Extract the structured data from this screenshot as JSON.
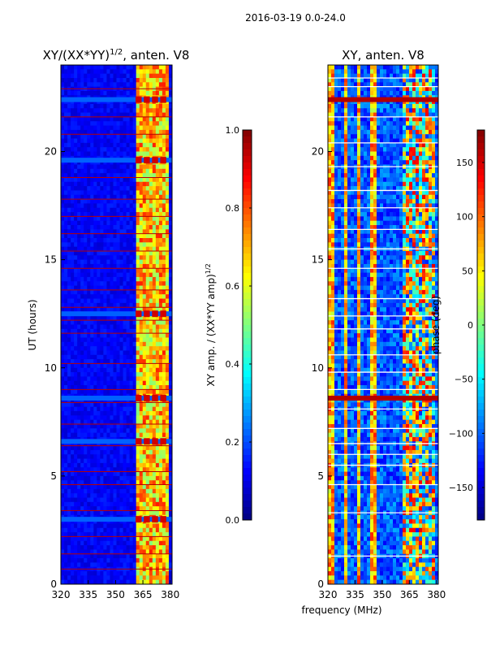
{
  "figure": {
    "suptitle": "2016-03-19 0.0-24.0",
    "shared_xlabel": "frequency (MHz)"
  },
  "colors": {
    "jet": [
      "#00007f",
      "#0000ff",
      "#007fff",
      "#00ffff",
      "#7fff7f",
      "#ffff00",
      "#ff7f00",
      "#ff0000",
      "#7f0000"
    ],
    "line_red": "#b80000"
  },
  "chart_data": [
    {
      "type": "heatmap",
      "title": "XY/(XX*YY)",
      "title_exp": "1/2",
      "title_suffix": ", anten. V8",
      "xlabel": "",
      "ylabel": "UT (hours)",
      "xlim": [
        320,
        381
      ],
      "ylim": [
        0,
        24
      ],
      "x_ticks": [
        320,
        335,
        350,
        365,
        380
      ],
      "y_ticks": [
        0,
        5,
        10,
        15,
        20
      ],
      "colorbar": {
        "label": "XY amp. / (XX*YY amp)",
        "label_exp": "1/2",
        "range": [
          0.0,
          1.0
        ],
        "ticks": [
          "0.0",
          "0.2",
          "0.4",
          "0.6",
          "0.8",
          "1.0"
        ],
        "tick_values": [
          0.0,
          0.2,
          0.4,
          0.6,
          0.8,
          1.0
        ]
      },
      "band_x_range": [
        361,
        380
      ],
      "band_columns": [
        361,
        365.5,
        370,
        374.5
      ],
      "bright_rows_hours": [
        22.4,
        19.6,
        12.5,
        8.6,
        6.6,
        3.0
      ],
      "flag_lines_hours": [
        0.7,
        1.4,
        2.2,
        3.4,
        4.6,
        5.2,
        6.4,
        7.4,
        8.4,
        9.0,
        10.2,
        11.6,
        12.2,
        12.8,
        13.6,
        14.6,
        15.4,
        16.2,
        17.0,
        17.8,
        18.8,
        20.8,
        21.6,
        22.9
      ],
      "base_value": 0.12,
      "band_value": 0.65
    },
    {
      "type": "heatmap",
      "title": "XY, anten. V8",
      "xlabel": "frequency (MHz)",
      "ylabel": "",
      "xlim": [
        320,
        381
      ],
      "ylim": [
        0,
        24
      ],
      "x_ticks": [
        320,
        335,
        350,
        365,
        380
      ],
      "y_ticks": [
        0,
        5,
        10,
        15,
        20
      ],
      "colorbar": {
        "label": "phase (deg)",
        "range": [
          -180,
          180
        ],
        "ticks": [
          "150",
          "100",
          "50",
          "0",
          "−50",
          "−100",
          "−150"
        ],
        "tick_values": [
          150,
          100,
          50,
          0,
          -50,
          -100,
          -150
        ]
      },
      "band_x_range": [
        361,
        380
      ],
      "bright_rows_hours": [
        22.4,
        8.6
      ],
      "white_lines_hours": [
        1.3,
        3.3,
        4.6,
        5.5,
        6.0,
        6.5,
        7.2,
        8.1,
        9.0,
        9.8,
        10.6,
        11.8,
        12.4,
        13.2,
        14.6,
        15.5,
        16.4,
        17.4,
        18.2,
        19.3,
        20.4,
        21.6,
        23.0,
        23.4
      ],
      "hot_columns_mhz": [
        322,
        330,
        337,
        345
      ]
    }
  ]
}
